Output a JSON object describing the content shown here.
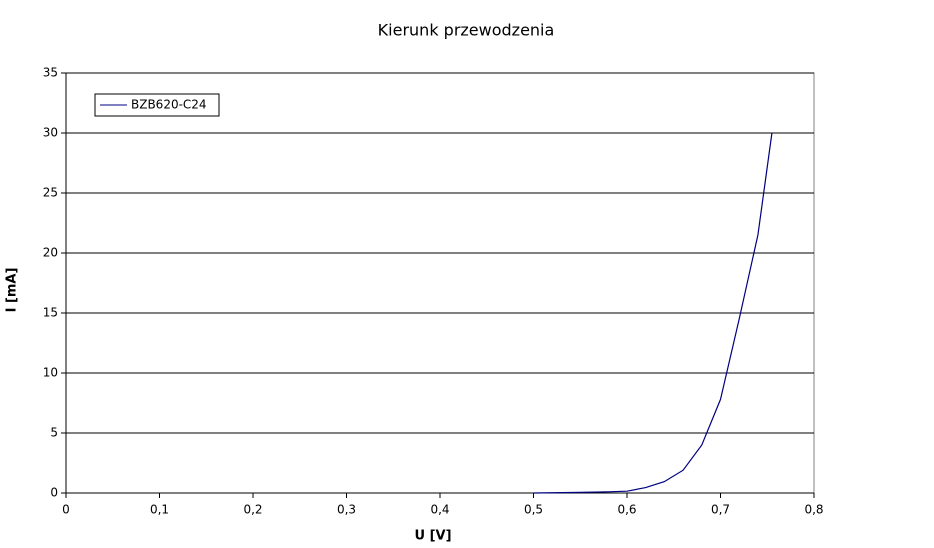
{
  "chart_data": {
    "type": "line",
    "title": "Kierunk przewodzenia",
    "x_label": "U [V]",
    "y_label": "I [mA]",
    "x": [
      0.5,
      0.55,
      0.58,
      0.6,
      0.62,
      0.64,
      0.66,
      0.68,
      0.7,
      0.72,
      0.74,
      0.755
    ],
    "series": [
      {
        "name": "BZB620-C24",
        "color": "#000080",
        "values": [
          0,
          0.05,
          0.1,
          0.15,
          0.45,
          0.95,
          1.9,
          4,
          7.8,
          14.5,
          21.5,
          30
        ]
      }
    ],
    "xlim": [
      0,
      0.8
    ],
    "xticks": [
      0,
      {
        "value": 0.1,
        "label": "0,1"
      },
      {
        "value": 0.2,
        "label": "0,2"
      },
      {
        "value": 0.3,
        "label": "0,3"
      },
      {
        "value": 0.4,
        "label": "0,4"
      },
      {
        "value": 0.5,
        "label": "0,5"
      },
      {
        "value": 0.6,
        "label": "0,6"
      },
      {
        "value": 0.7,
        "label": "0,7"
      },
      {
        "value": 0.8,
        "label": "0,8"
      }
    ],
    "ylim": [
      0,
      35
    ],
    "yticks": [
      0,
      5,
      10,
      15,
      20,
      25,
      30,
      35
    ],
    "grid": true,
    "legend": "top-left"
  }
}
